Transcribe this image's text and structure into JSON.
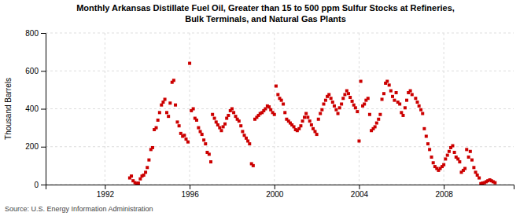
{
  "chart_data": {
    "type": "scatter",
    "title": "Monthly Arkansas Distillate Fuel Oil, Greater than 15 to 500 ppm Sulfur Stocks at Refineries,\nBulk Terminals, and Natural Gas Plants",
    "ylabel": "Thousand Barrels",
    "annotations": [
      "Source: U.S. Energy Information Administration"
    ],
    "color": "#cc0000",
    "marker": "square",
    "grid": true,
    "xlim": [
      1989.2,
      2011.3
    ],
    "ylim": [
      0,
      800
    ],
    "xticks": [
      1992,
      1996,
      2000,
      2004,
      2008
    ],
    "yticks": [
      0,
      200,
      400,
      600,
      800
    ],
    "x": [
      1993.17,
      1993.25,
      1993.33,
      1993.42,
      1993.5,
      1993.58,
      1993.67,
      1993.75,
      1993.83,
      1993.92,
      1994,
      1994.08,
      1994.17,
      1994.25,
      1994.33,
      1994.42,
      1994.5,
      1994.58,
      1994.67,
      1994.75,
      1994.83,
      1994.92,
      1995,
      1995.08,
      1995.17,
      1995.25,
      1995.33,
      1995.42,
      1995.5,
      1995.58,
      1995.67,
      1995.75,
      1995.83,
      1995.92,
      1996,
      1996.08,
      1996.17,
      1996.25,
      1996.33,
      1996.42,
      1996.5,
      1996.58,
      1996.67,
      1996.75,
      1996.83,
      1996.92,
      1997,
      1997.08,
      1997.17,
      1997.25,
      1997.33,
      1997.42,
      1997.5,
      1997.58,
      1997.67,
      1997.75,
      1997.83,
      1997.92,
      1998,
      1998.08,
      1998.17,
      1998.25,
      1998.33,
      1998.42,
      1998.5,
      1998.58,
      1998.67,
      1998.75,
      1998.83,
      1998.92,
      1999,
      1999.08,
      1999.17,
      1999.25,
      1999.33,
      1999.42,
      1999.5,
      1999.58,
      1999.67,
      1999.75,
      1999.83,
      1999.92,
      2000,
      2000.08,
      2000.17,
      2000.25,
      2000.33,
      2000.42,
      2000.5,
      2000.58,
      2000.67,
      2000.75,
      2000.83,
      2000.92,
      2001,
      2001.08,
      2001.17,
      2001.25,
      2001.33,
      2001.42,
      2001.5,
      2001.58,
      2001.67,
      2001.75,
      2001.83,
      2001.92,
      2002,
      2002.08,
      2002.17,
      2002.25,
      2002.33,
      2002.42,
      2002.5,
      2002.58,
      2002.67,
      2002.75,
      2002.83,
      2002.92,
      2003,
      2003.08,
      2003.17,
      2003.25,
      2003.33,
      2003.42,
      2003.5,
      2003.58,
      2003.67,
      2003.75,
      2003.83,
      2003.92,
      2004,
      2004.08,
      2004.17,
      2004.25,
      2004.33,
      2004.42,
      2004.5,
      2004.58,
      2004.67,
      2004.75,
      2004.83,
      2004.92,
      2005,
      2005.08,
      2005.17,
      2005.25,
      2005.33,
      2005.42,
      2005.5,
      2005.58,
      2005.67,
      2005.75,
      2005.83,
      2005.92,
      2006,
      2006.08,
      2006.17,
      2006.25,
      2006.33,
      2006.42,
      2006.5,
      2006.67,
      2006.75,
      2006.83,
      2006.92,
      2007,
      2007.08,
      2007.17,
      2007.25,
      2007.33,
      2007.42,
      2007.5,
      2007.58,
      2007.67,
      2007.75,
      2007.83,
      2007.92,
      2008,
      2008.08,
      2008.17,
      2008.25,
      2008.33,
      2008.42,
      2008.5,
      2008.58,
      2008.67,
      2008.75,
      2008.83,
      2008.92,
      2009,
      2009.08,
      2009.17,
      2009.25,
      2009.33,
      2009.42,
      2009.5,
      2009.58,
      2009.67,
      2009.75,
      2009.83,
      2009.92,
      2010,
      2010.08,
      2010.17,
      2010.25,
      2010.33,
      2010.42
    ],
    "values": [
      35,
      45,
      20,
      10,
      5,
      8,
      30,
      45,
      50,
      65,
      90,
      130,
      185,
      195,
      290,
      300,
      340,
      380,
      420,
      435,
      450,
      380,
      360,
      430,
      540,
      550,
      420,
      330,
      310,
      270,
      255,
      260,
      240,
      225,
      640,
      390,
      400,
      350,
      340,
      300,
      280,
      265,
      235,
      215,
      170,
      160,
      120,
      370,
      350,
      330,
      315,
      300,
      285,
      305,
      320,
      350,
      365,
      390,
      400,
      380,
      360,
      345,
      335,
      310,
      280,
      260,
      245,
      230,
      215,
      110,
      100,
      345,
      355,
      365,
      375,
      380,
      390,
      400,
      415,
      410,
      395,
      380,
      370,
      520,
      475,
      455,
      445,
      425,
      380,
      345,
      335,
      325,
      315,
      305,
      290,
      285,
      295,
      310,
      335,
      355,
      375,
      355,
      335,
      315,
      295,
      280,
      265,
      345,
      375,
      395,
      425,
      445,
      465,
      475,
      455,
      435,
      415,
      395,
      375,
      405,
      425,
      455,
      475,
      495,
      480,
      460,
      440,
      420,
      405,
      385,
      230,
      545,
      415,
      425,
      445,
      455,
      370,
      285,
      295,
      305,
      325,
      345,
      370,
      450,
      480,
      535,
      545,
      525,
      495,
      465,
      445,
      485,
      435,
      425,
      380,
      365,
      405,
      445,
      485,
      495,
      475,
      455,
      435,
      415,
      395,
      375,
      295,
      255,
      215,
      185,
      145,
      115,
      95,
      85,
      75,
      85,
      95,
      105,
      135,
      155,
      175,
      195,
      205,
      170,
      145,
      135,
      120,
      65,
      75,
      85,
      185,
      145,
      175,
      130,
      90,
      65,
      50,
      35,
      5,
      8,
      10,
      15,
      20,
      25,
      20,
      15,
      10
    ]
  }
}
